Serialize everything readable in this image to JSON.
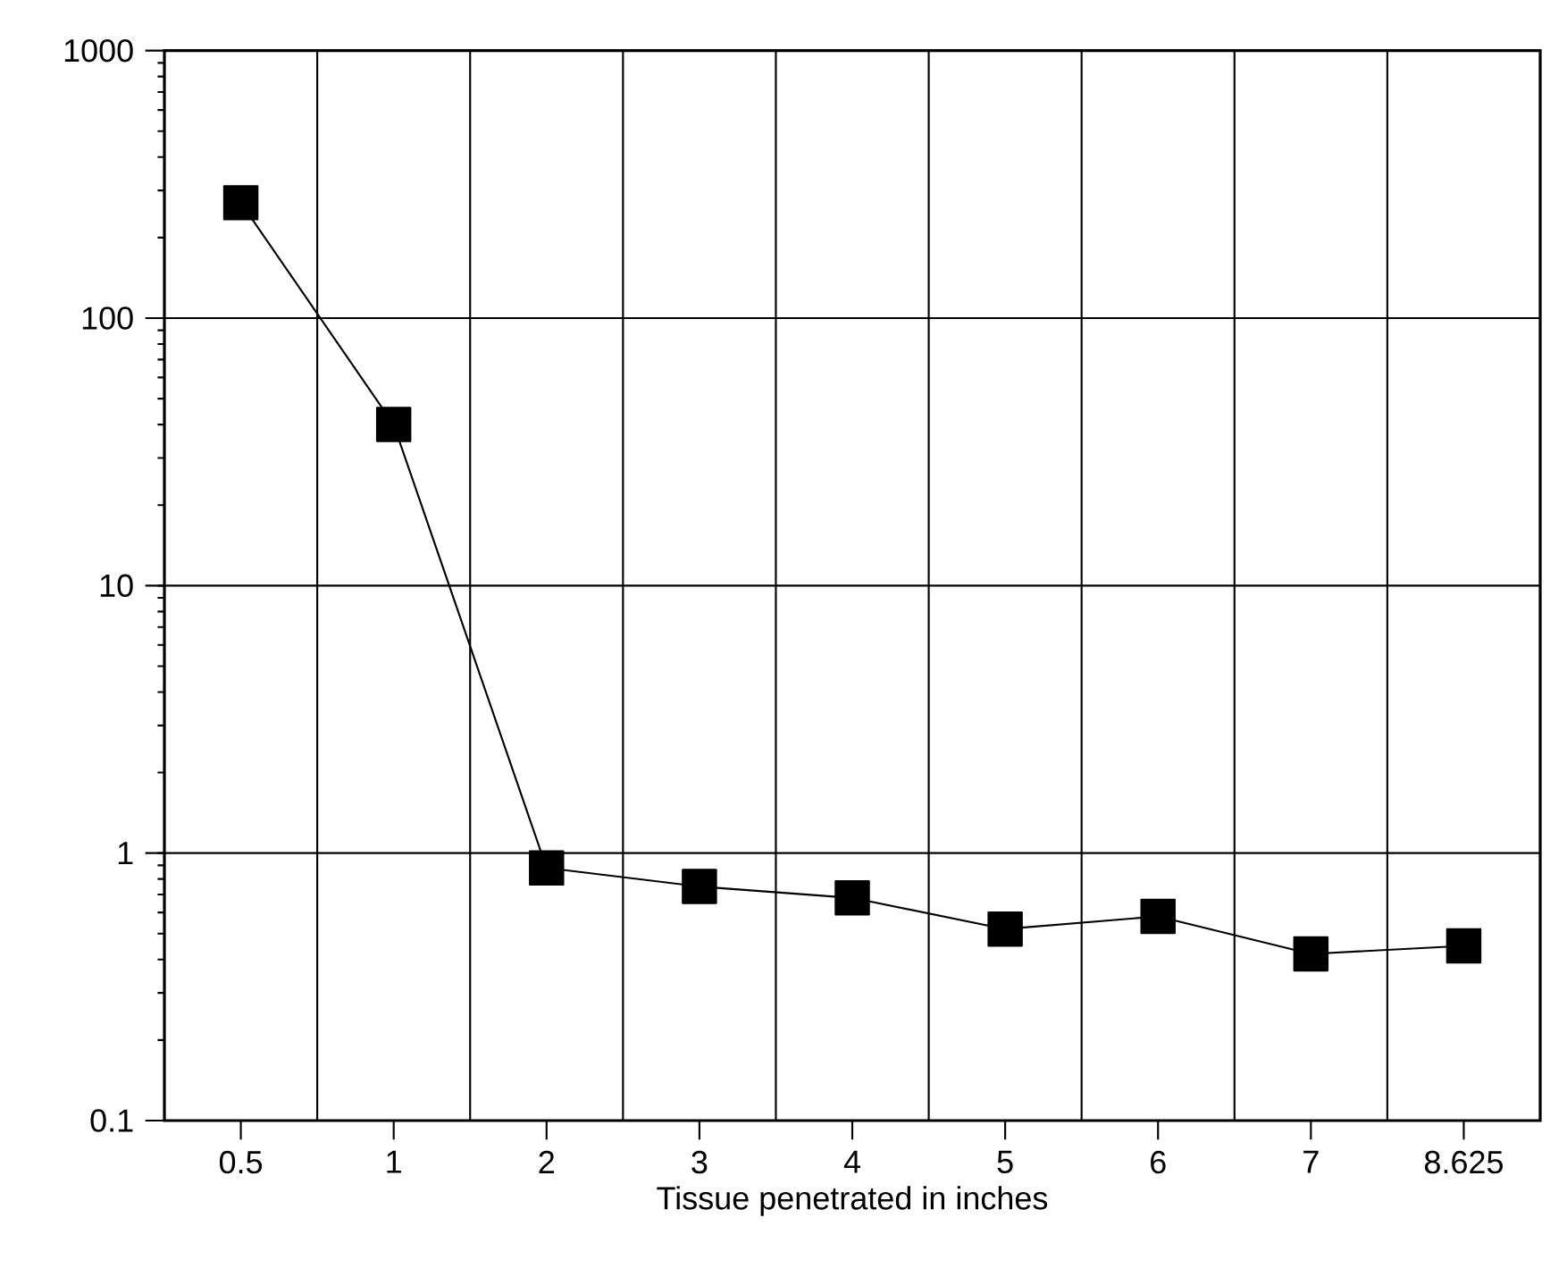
{
  "chart_data": {
    "type": "line",
    "xlabel": "Tissue penetrated in inches",
    "categories": [
      "0.5",
      "1",
      "2",
      "3",
      "4",
      "5",
      "6",
      "7",
      "8.625"
    ],
    "series": [
      {
        "color": "#000000",
        "values": [
          270,
          40,
          0.88,
          0.75,
          0.68,
          0.52,
          0.58,
          0.42,
          0.45
        ]
      }
    ],
    "log": "y",
    "ylim": [
      0.1,
      1000
    ],
    "yticks": [
      0.1,
      1,
      10,
      100,
      1000
    ],
    "grid": true,
    "marker": "square",
    "line_style": "solid"
  }
}
